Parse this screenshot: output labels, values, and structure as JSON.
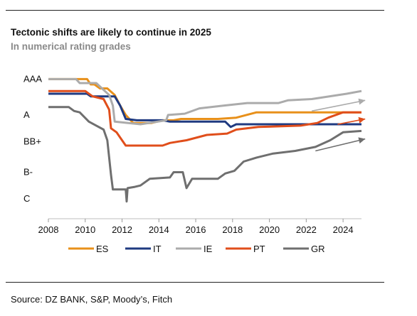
{
  "title": "Tectonic shifts are likely to continue in 2025",
  "subtitle": "In numerical rating grades",
  "source": "Source: DZ BANK, S&P, Moody’s, Fitch",
  "chart_data": {
    "type": "line",
    "title": "Tectonic shifts are likely to continue in 2025",
    "subtitle": "In numerical rating grades",
    "xlim": [
      2008,
      2025
    ],
    "ylim": [
      -0.5,
      10.5
    ],
    "x_ticks": [
      2008,
      2010,
      2012,
      2014,
      2016,
      2018,
      2020,
      2022,
      2024
    ],
    "y_ticks": [
      {
        "label": "AAA",
        "value": 10
      },
      {
        "label": "A",
        "value": 7.3
      },
      {
        "label": "BB+",
        "value": 5.3
      },
      {
        "label": "B-",
        "value": 3
      },
      {
        "label": "C",
        "value": 1
      }
    ],
    "legend_position": "bottom",
    "series": [
      {
        "name": "ES",
        "color": "#E8901A",
        "points": [
          [
            2008,
            10
          ],
          [
            2010.1,
            10
          ],
          [
            2010.3,
            9.6
          ],
          [
            2010.5,
            9.6
          ],
          [
            2010.8,
            9.3
          ],
          [
            2011.2,
            9.3
          ],
          [
            2011.6,
            8.8
          ],
          [
            2011.9,
            8
          ],
          [
            2012.2,
            7.3
          ],
          [
            2012.6,
            6.7
          ],
          [
            2013.6,
            6.7
          ],
          [
            2014.2,
            6.9
          ],
          [
            2014.8,
            6.9
          ],
          [
            2015.2,
            7
          ],
          [
            2017.2,
            7
          ],
          [
            2018.2,
            7.1
          ],
          [
            2019.3,
            7.5
          ],
          [
            2022,
            7.5
          ],
          [
            2024.2,
            7.5
          ],
          [
            2025,
            7.5
          ]
        ]
      },
      {
        "name": "IT",
        "color": "#1F3A80",
        "points": [
          [
            2008,
            8.9
          ],
          [
            2010.1,
            8.9
          ],
          [
            2010.3,
            8.7
          ],
          [
            2011.6,
            8.7
          ],
          [
            2011.9,
            8
          ],
          [
            2012.2,
            7
          ],
          [
            2012.8,
            6.9
          ],
          [
            2014.2,
            6.9
          ],
          [
            2014.6,
            6.8
          ],
          [
            2017.6,
            6.8
          ],
          [
            2017.9,
            6.4
          ],
          [
            2018.2,
            6.6
          ],
          [
            2025,
            6.6
          ]
        ]
      },
      {
        "name": "IE",
        "color": "#ABABAB",
        "points": [
          [
            2008,
            10
          ],
          [
            2009.5,
            10
          ],
          [
            2009.7,
            9.7
          ],
          [
            2010.6,
            9.7
          ],
          [
            2011.3,
            8.8
          ],
          [
            2011.5,
            8
          ],
          [
            2011.6,
            6.8
          ],
          [
            2013,
            6.6
          ],
          [
            2014.4,
            6.9
          ],
          [
            2014.5,
            7.3
          ],
          [
            2015.4,
            7.4
          ],
          [
            2016.2,
            7.8
          ],
          [
            2017.5,
            8
          ],
          [
            2018.8,
            8.2
          ],
          [
            2020.5,
            8.2
          ],
          [
            2021,
            8.4
          ],
          [
            2022.3,
            8.5
          ],
          [
            2024.2,
            8.9
          ],
          [
            2025,
            9.1
          ]
        ]
      },
      {
        "name": "PT",
        "color": "#E04E1B",
        "points": [
          [
            2008,
            9.1
          ],
          [
            2010,
            9.1
          ],
          [
            2010.4,
            8.7
          ],
          [
            2011,
            8.5
          ],
          [
            2011.3,
            7.7
          ],
          [
            2011.4,
            6.3
          ],
          [
            2011.7,
            6
          ],
          [
            2012,
            5.4
          ],
          [
            2012.2,
            5
          ],
          [
            2014.2,
            5
          ],
          [
            2014.6,
            5.2
          ],
          [
            2015.5,
            5.4
          ],
          [
            2016.6,
            5.8
          ],
          [
            2017.7,
            5.9
          ],
          [
            2018.2,
            6.2
          ],
          [
            2019.4,
            6.4
          ],
          [
            2021.7,
            6.5
          ],
          [
            2022.6,
            6.7
          ],
          [
            2023.2,
            7.1
          ],
          [
            2024,
            7.5
          ],
          [
            2025,
            7.5
          ]
        ]
      },
      {
        "name": "GR",
        "color": "#6F6F6F",
        "points": [
          [
            2008,
            7.9
          ],
          [
            2009.1,
            7.9
          ],
          [
            2009.4,
            7.6
          ],
          [
            2009.7,
            7.5
          ],
          [
            2010.2,
            6.8
          ],
          [
            2010.6,
            6.5
          ],
          [
            2011,
            6.2
          ],
          [
            2011.2,
            5.4
          ],
          [
            2011.4,
            2.8
          ],
          [
            2011.5,
            1.7
          ],
          [
            2012.2,
            1.7
          ],
          [
            2012.25,
            0.8
          ],
          [
            2012.3,
            1.8
          ],
          [
            2012.7,
            1.9
          ],
          [
            2013,
            2
          ],
          [
            2013.5,
            2.5
          ],
          [
            2014.6,
            2.6
          ],
          [
            2014.8,
            3
          ],
          [
            2015.3,
            3
          ],
          [
            2015.5,
            1.8
          ],
          [
            2015.8,
            2.5
          ],
          [
            2017.2,
            2.5
          ],
          [
            2017.6,
            2.9
          ],
          [
            2018.1,
            3.1
          ],
          [
            2018.6,
            3.8
          ],
          [
            2019.3,
            4.1
          ],
          [
            2020.2,
            4.4
          ],
          [
            2021.4,
            4.6
          ],
          [
            2022.5,
            4.9
          ],
          [
            2023.3,
            5.4
          ],
          [
            2024,
            6
          ],
          [
            2025,
            6.1
          ]
        ]
      }
    ],
    "arrows": [
      {
        "color": "#ABABAB",
        "from": [
          2022.3,
          7.6
        ],
        "to": [
          2025.2,
          8.4
        ]
      },
      {
        "color": "#E04E1B",
        "from": [
          2023.7,
          6.6
        ],
        "to": [
          2025.2,
          7
        ]
      },
      {
        "color": "#6F6F6F",
        "from": [
          2022.5,
          4.6
        ],
        "to": [
          2025.2,
          5.5
        ]
      }
    ]
  }
}
